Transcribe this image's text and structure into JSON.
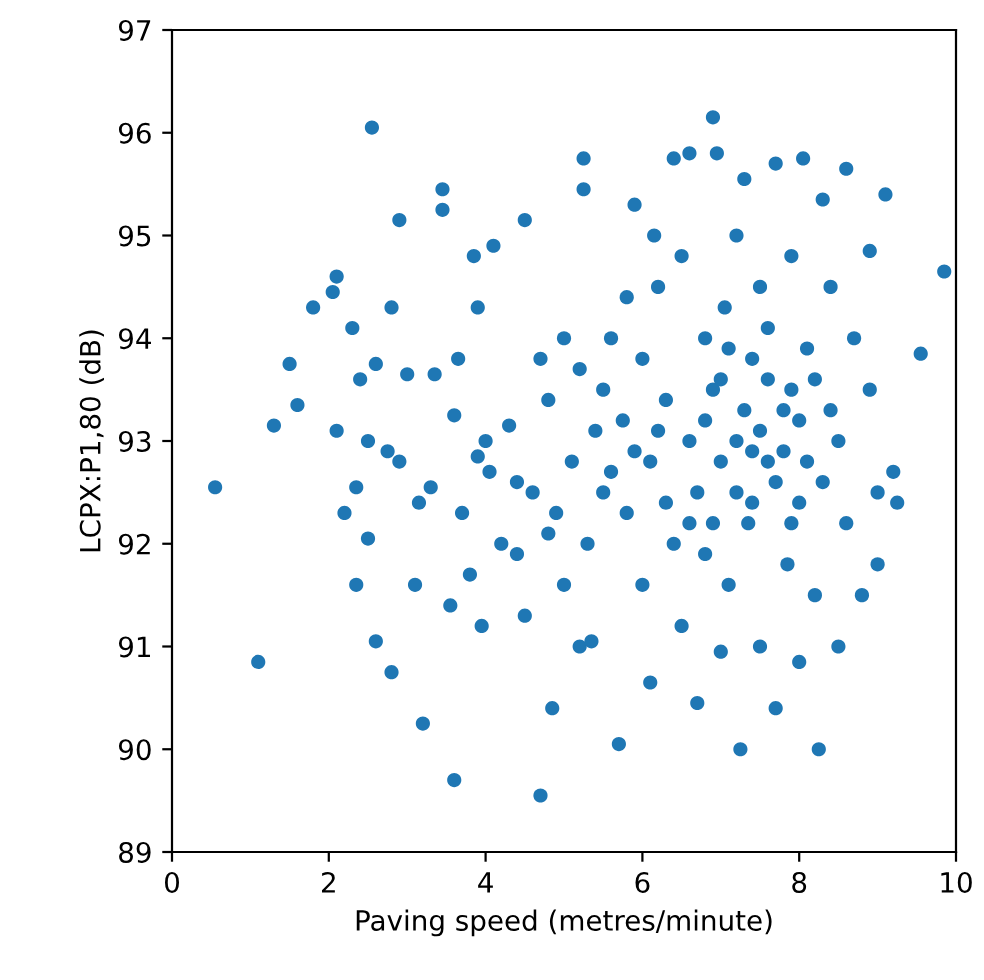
{
  "chart_data": {
    "type": "scatter",
    "xlabel": "Paving speed (metres/minute)",
    "ylabel": "LCPX:P1,80 (dB)",
    "xlim": [
      0,
      10
    ],
    "ylim": [
      89,
      97
    ],
    "xticks": [
      0,
      2,
      4,
      6,
      8,
      10
    ],
    "yticks": [
      89,
      90,
      91,
      92,
      93,
      94,
      95,
      96,
      97
    ],
    "grid": false,
    "marker": "circle",
    "series": [
      {
        "color": "#1f77b4",
        "x": [
          0.55,
          1.1,
          1.3,
          1.5,
          1.6,
          1.8,
          2.05,
          2.1,
          2.1,
          2.2,
          2.3,
          2.35,
          2.35,
          2.4,
          2.55,
          2.5,
          2.5,
          2.6,
          2.6,
          2.75,
          2.8,
          2.8,
          2.9,
          2.9,
          3.0,
          3.1,
          3.15,
          3.2,
          3.3,
          3.35,
          3.45,
          3.45,
          3.55,
          3.6,
          3.6,
          3.65,
          3.7,
          3.8,
          3.85,
          3.9,
          3.9,
          3.95,
          4.0,
          4.05,
          4.1,
          4.2,
          4.3,
          4.4,
          4.5,
          4.5,
          4.6,
          4.7,
          4.7,
          4.8,
          4.85,
          4.9,
          5.0,
          5.0,
          5.1,
          5.2,
          5.25,
          5.25,
          5.2,
          5.3,
          5.35,
          5.5,
          5.5,
          5.6,
          5.7,
          5.75,
          5.8,
          5.8,
          5.9,
          6.0,
          6.0,
          6.1,
          6.1,
          6.15,
          6.2,
          6.3,
          6.4,
          6.4,
          6.5,
          6.5,
          6.6,
          6.6,
          6.7,
          6.7,
          6.8,
          6.8,
          6.9,
          6.9,
          6.95,
          7.0,
          7.0,
          7.05,
          7.1,
          7.2,
          7.2,
          7.25,
          7.3,
          7.35,
          7.4,
          7.5,
          7.5,
          7.6,
          7.7,
          7.7,
          7.8,
          7.85,
          7.9,
          8.0,
          8.0,
          8.05,
          8.1,
          8.2,
          8.25,
          8.3,
          8.4,
          8.5,
          8.5,
          8.6,
          8.6,
          8.7,
          8.8,
          8.9,
          8.9,
          9.0,
          9.0,
          9.1,
          9.2,
          9.25,
          9.55,
          9.85,
          6.8,
          7.0,
          7.2,
          7.3,
          7.4,
          7.5,
          7.6,
          7.7,
          7.8,
          7.9,
          8.0,
          8.1,
          7.1,
          7.6,
          8.2,
          7.4,
          6.9,
          7.9,
          8.4,
          8.3,
          6.6,
          6.3,
          5.9,
          6.2,
          5.6,
          5.4,
          4.8,
          4.4
        ],
        "values": [
          92.55,
          90.85,
          93.15,
          93.75,
          93.35,
          94.3,
          94.45,
          94.6,
          93.1,
          92.3,
          94.1,
          92.55,
          91.6,
          93.6,
          96.05,
          93.0,
          92.05,
          91.05,
          93.75,
          92.9,
          90.75,
          94.3,
          92.8,
          95.15,
          93.65,
          91.6,
          92.4,
          90.25,
          92.55,
          93.65,
          95.45,
          95.25,
          91.4,
          89.7,
          93.25,
          93.8,
          92.3,
          91.7,
          94.8,
          94.3,
          92.85,
          91.2,
          93.0,
          92.7,
          94.9,
          92.0,
          93.15,
          91.9,
          95.15,
          91.3,
          92.5,
          89.55,
          93.8,
          93.4,
          90.4,
          92.3,
          94.0,
          91.6,
          92.8,
          93.7,
          95.75,
          95.45,
          91.0,
          92.0,
          91.05,
          93.5,
          92.5,
          94.0,
          90.05,
          93.2,
          92.3,
          94.4,
          95.3,
          91.6,
          93.8,
          90.65,
          92.8,
          95.0,
          94.5,
          93.4,
          95.75,
          92.0,
          94.8,
          91.2,
          93.0,
          95.8,
          90.45,
          92.5,
          94.0,
          91.9,
          96.15,
          93.5,
          95.8,
          92.8,
          90.95,
          94.3,
          91.6,
          95.0,
          93.0,
          90.0,
          95.55,
          92.2,
          93.8,
          91.0,
          94.5,
          92.8,
          95.7,
          90.4,
          93.3,
          91.8,
          94.8,
          92.4,
          90.85,
          95.75,
          93.9,
          91.5,
          90.0,
          95.35,
          94.5,
          93.0,
          91.0,
          95.65,
          92.2,
          94.0,
          91.5,
          93.5,
          94.85,
          92.5,
          91.8,
          95.4,
          92.7,
          92.4,
          93.85,
          94.65,
          93.2,
          93.6,
          92.5,
          93.3,
          92.9,
          93.1,
          93.6,
          92.6,
          92.9,
          93.5,
          93.2,
          92.8,
          93.9,
          94.1,
          93.6,
          92.4,
          92.2,
          92.2,
          93.3,
          92.6,
          92.2,
          92.4,
          92.9,
          93.1,
          92.7,
          93.1,
          92.1,
          92.6
        ]
      }
    ]
  }
}
